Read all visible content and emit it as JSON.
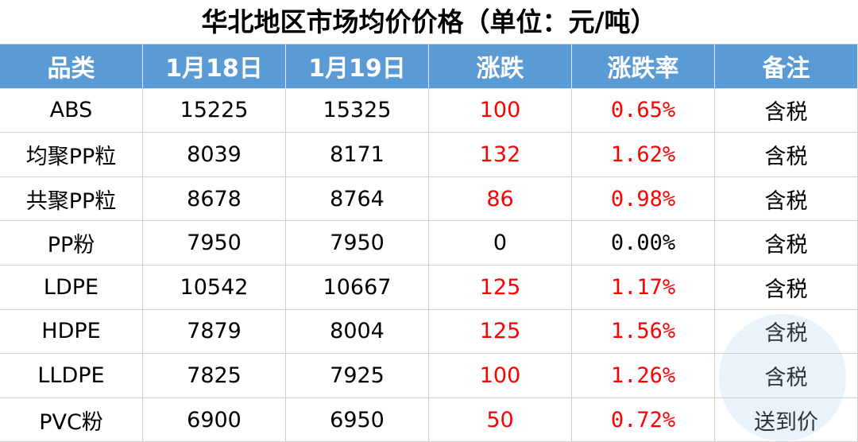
{
  "header": {
    "title": "华北地区市场均价价格（单位：元/吨）"
  },
  "table": {
    "columns": [
      "品类",
      "1月18日",
      "1月19日",
      "涨跌",
      "涨跌率",
      "备注"
    ],
    "header_color": "#5b9bd5",
    "rise_color": "#ff0000",
    "rows": [
      [
        "ABS",
        "15225",
        "15325",
        "100",
        "0.65%",
        "含税"
      ],
      [
        "均聚PP粒",
        "8039",
        "8171",
        "132",
        "1.62%",
        "含税"
      ],
      [
        "共聚PP粒",
        "8678",
        "8764",
        "86",
        "0.98%",
        "含税"
      ],
      [
        "PP粉",
        "7950",
        "7950",
        "0",
        "0.00%",
        "含税"
      ],
      [
        "LDPE",
        "10542",
        "10667",
        "125",
        "1.17%",
        "含税"
      ],
      [
        "HDPE",
        "7879",
        "8004",
        "125",
        "1.56%",
        "含税"
      ],
      [
        "LLDPE",
        "7825",
        "7925",
        "100",
        "1.26%",
        "含税"
      ],
      [
        "PVC粉",
        "6900",
        "6950",
        "50",
        "0.72%",
        "送到价"
      ]
    ]
  }
}
